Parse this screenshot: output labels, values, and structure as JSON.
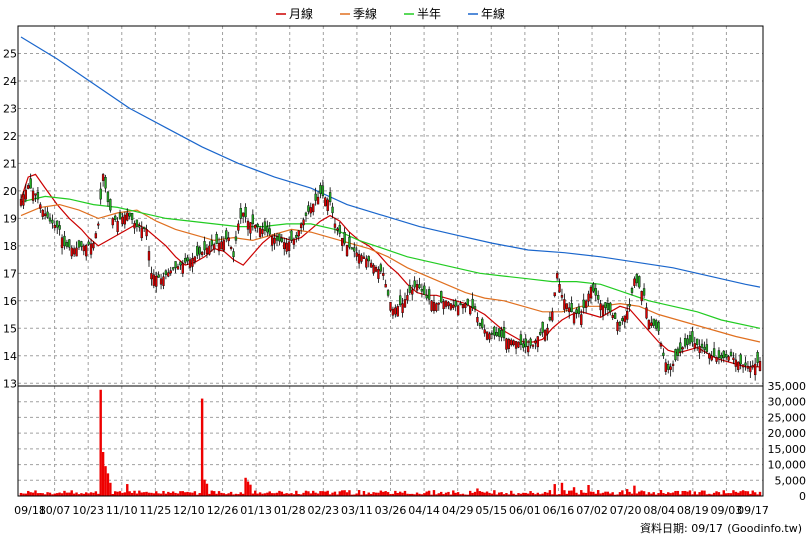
{
  "chart_data": {
    "type": "candlestick",
    "legend": [
      {
        "name": "月線",
        "color": "#cc0000"
      },
      {
        "name": "季線",
        "color": "#e07020"
      },
      {
        "name": "半年",
        "color": "#22cc22"
      },
      {
        "name": "年線",
        "color": "#1a66cc"
      }
    ],
    "x_ticks": [
      "09/18",
      "10/07",
      "10/23",
      "11/10",
      "11/25",
      "12/10",
      "12/26",
      "01/13",
      "01/28",
      "02/23",
      "03/11",
      "03/26",
      "04/14",
      "04/29",
      "05/15",
      "06/01",
      "06/16",
      "07/02",
      "07/20",
      "08/04",
      "08/19",
      "09/03",
      "09/17"
    ],
    "price_axis": {
      "ylim": [
        12.9,
        26
      ],
      "ticks": [
        13,
        14,
        15,
        16,
        17,
        18,
        19,
        20,
        21,
        22,
        23,
        24,
        25
      ]
    },
    "volume_axis": {
      "ylim": [
        0,
        35000
      ],
      "ticks": [
        "0",
        "5,000",
        "10,000",
        "15,000",
        "20,000",
        "25,000",
        "30,000",
        "35,000"
      ]
    },
    "colors": {
      "up": "#dd0000",
      "down": "#22aa22",
      "volume": "#ee0000",
      "grid": "#a0a0a0"
    },
    "lines": {
      "月線": [
        [
          0,
          19.7
        ],
        [
          3,
          20.5
        ],
        [
          6,
          20.6
        ],
        [
          10,
          20.1
        ],
        [
          15,
          19.5
        ],
        [
          20,
          19.0
        ],
        [
          25,
          18.6
        ],
        [
          28,
          18.3
        ],
        [
          32,
          18.0
        ],
        [
          36,
          18.2
        ],
        [
          40,
          18.4
        ],
        [
          44,
          18.6
        ],
        [
          48,
          18.8
        ],
        [
          52,
          18.6
        ],
        [
          56,
          18.3
        ],
        [
          60,
          18.0
        ],
        [
          64,
          17.6
        ],
        [
          68,
          17.3
        ],
        [
          72,
          17.4
        ],
        [
          76,
          17.6
        ],
        [
          80,
          17.9
        ],
        [
          84,
          17.8
        ],
        [
          88,
          17.5
        ],
        [
          92,
          17.3
        ],
        [
          96,
          17.7
        ],
        [
          100,
          18.1
        ],
        [
          104,
          18.4
        ],
        [
          108,
          18.3
        ],
        [
          112,
          18.2
        ],
        [
          116,
          18.3
        ],
        [
          120,
          18.6
        ],
        [
          124,
          18.9
        ],
        [
          128,
          19.1
        ],
        [
          132,
          18.9
        ],
        [
          136,
          18.5
        ],
        [
          140,
          18.2
        ],
        [
          144,
          18.0
        ],
        [
          148,
          17.7
        ],
        [
          152,
          17.3
        ],
        [
          156,
          17.0
        ],
        [
          160,
          16.6
        ],
        [
          164,
          16.3
        ],
        [
          168,
          16.2
        ],
        [
          172,
          16.2
        ],
        [
          176,
          16.1
        ],
        [
          180,
          16.0
        ],
        [
          184,
          15.9
        ],
        [
          188,
          15.7
        ],
        [
          192,
          15.5
        ],
        [
          196,
          15.2
        ],
        [
          200,
          14.9
        ],
        [
          204,
          14.7
        ],
        [
          208,
          14.5
        ],
        [
          212,
          14.5
        ],
        [
          216,
          14.6
        ],
        [
          220,
          15.0
        ],
        [
          224,
          15.3
        ],
        [
          228,
          15.5
        ],
        [
          232,
          15.6
        ],
        [
          236,
          15.5
        ],
        [
          240,
          15.4
        ],
        [
          244,
          15.6
        ],
        [
          248,
          15.8
        ],
        [
          252,
          15.7
        ],
        [
          256,
          15.3
        ],
        [
          260,
          14.9
        ],
        [
          264,
          14.5
        ],
        [
          268,
          14.2
        ],
        [
          272,
          14.1
        ],
        [
          276,
          14.2
        ],
        [
          280,
          14.3
        ],
        [
          284,
          14.1
        ],
        [
          288,
          13.9
        ],
        [
          292,
          13.8
        ],
        [
          296,
          13.7
        ],
        [
          300,
          13.6
        ],
        [
          306,
          13.6
        ]
      ],
      "季線": [
        [
          0,
          19.1
        ],
        [
          8,
          19.4
        ],
        [
          16,
          19.5
        ],
        [
          24,
          19.3
        ],
        [
          32,
          19.0
        ],
        [
          40,
          19.2
        ],
        [
          48,
          19.3
        ],
        [
          56,
          18.9
        ],
        [
          64,
          18.6
        ],
        [
          72,
          18.4
        ],
        [
          80,
          18.2
        ],
        [
          88,
          18.3
        ],
        [
          96,
          18.2
        ],
        [
          104,
          18.4
        ],
        [
          112,
          18.6
        ],
        [
          120,
          18.5
        ],
        [
          128,
          18.3
        ],
        [
          136,
          18.1
        ],
        [
          144,
          17.9
        ],
        [
          152,
          17.6
        ],
        [
          160,
          17.2
        ],
        [
          168,
          16.9
        ],
        [
          176,
          16.6
        ],
        [
          184,
          16.3
        ],
        [
          192,
          16.1
        ],
        [
          200,
          16.0
        ],
        [
          208,
          15.8
        ],
        [
          216,
          15.6
        ],
        [
          224,
          15.6
        ],
        [
          232,
          15.8
        ],
        [
          240,
          15.8
        ],
        [
          248,
          15.9
        ],
        [
          256,
          15.8
        ],
        [
          264,
          15.5
        ],
        [
          272,
          15.3
        ],
        [
          280,
          15.1
        ],
        [
          288,
          14.9
        ],
        [
          296,
          14.7
        ],
        [
          306,
          14.5
        ]
      ],
      "半年": [
        [
          0,
          19.6
        ],
        [
          10,
          19.8
        ],
        [
          20,
          19.7
        ],
        [
          30,
          19.5
        ],
        [
          40,
          19.4
        ],
        [
          50,
          19.2
        ],
        [
          60,
          19.0
        ],
        [
          70,
          18.9
        ],
        [
          80,
          18.8
        ],
        [
          90,
          18.7
        ],
        [
          100,
          18.7
        ],
        [
          110,
          18.8
        ],
        [
          120,
          18.8
        ],
        [
          130,
          18.6
        ],
        [
          140,
          18.2
        ],
        [
          150,
          17.9
        ],
        [
          160,
          17.6
        ],
        [
          170,
          17.4
        ],
        [
          180,
          17.2
        ],
        [
          190,
          17.0
        ],
        [
          200,
          16.9
        ],
        [
          210,
          16.8
        ],
        [
          220,
          16.7
        ],
        [
          230,
          16.7
        ],
        [
          240,
          16.6
        ],
        [
          250,
          16.3
        ],
        [
          260,
          16.0
        ],
        [
          270,
          15.8
        ],
        [
          280,
          15.6
        ],
        [
          290,
          15.3
        ],
        [
          306,
          15.0
        ]
      ],
      "年線": [
        [
          0,
          25.6
        ],
        [
          15,
          24.8
        ],
        [
          30,
          23.9
        ],
        [
          45,
          23.0
        ],
        [
          60,
          22.3
        ],
        [
          75,
          21.6
        ],
        [
          90,
          21.0
        ],
        [
          105,
          20.5
        ],
        [
          120,
          20.1
        ],
        [
          135,
          19.5
        ],
        [
          150,
          19.1
        ],
        [
          165,
          18.7
        ],
        [
          180,
          18.4
        ],
        [
          195,
          18.1
        ],
        [
          210,
          17.85
        ],
        [
          225,
          17.75
        ],
        [
          240,
          17.6
        ],
        [
          255,
          17.4
        ],
        [
          270,
          17.2
        ],
        [
          285,
          16.9
        ],
        [
          300,
          16.6
        ],
        [
          306,
          16.5
        ]
      ]
    }
  },
  "footer": {
    "date_label": "資料日期: 09/17",
    "source": "(Goodinfo.tw)"
  }
}
